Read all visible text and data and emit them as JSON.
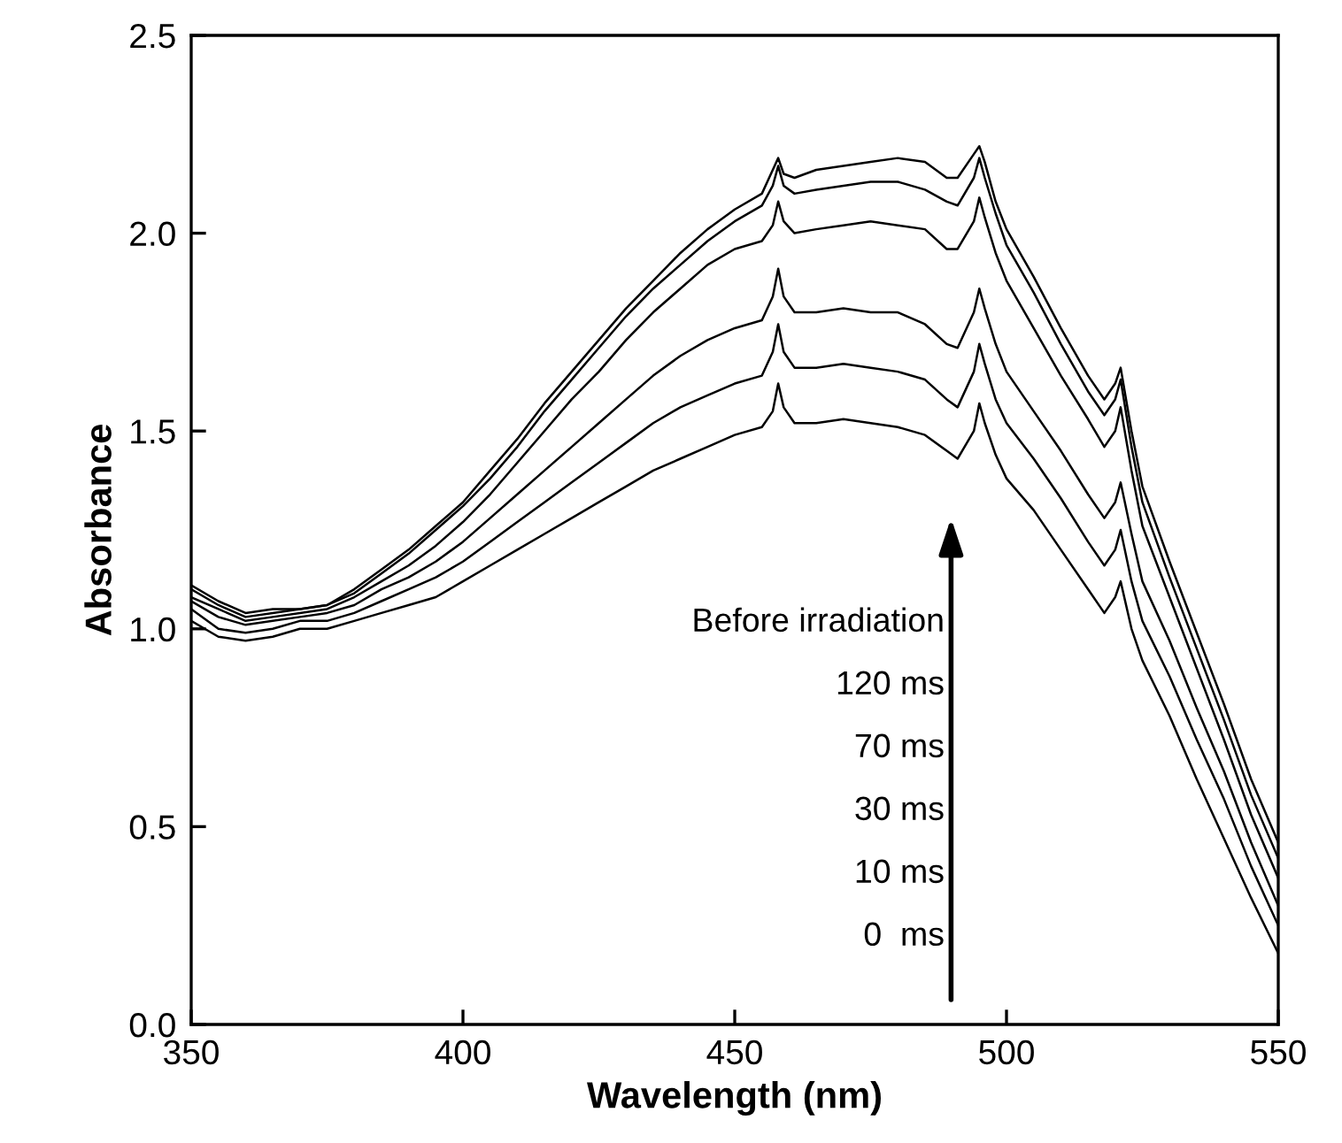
{
  "chart_data": {
    "type": "line",
    "xlabel": "Wavelength (nm)",
    "ylabel": "Absorbance",
    "xlim": [
      350,
      550
    ],
    "ylim": [
      0,
      2.5
    ],
    "xticks": [
      350,
      400,
      450,
      500,
      550
    ],
    "yticks": [
      {
        "value": 0,
        "label": "0.0"
      },
      {
        "value": 0.5,
        "label": "0.5"
      },
      {
        "value": 1,
        "label": "1.0"
      },
      {
        "value": 1.5,
        "label": "1.5"
      },
      {
        "value": 2,
        "label": "2.0"
      },
      {
        "value": 2.5,
        "label": "2.5"
      }
    ],
    "grid": false,
    "legend": false,
    "marker": "none",
    "line_style": "solid",
    "x": [
      350,
      355,
      360,
      365,
      370,
      375,
      380,
      385,
      390,
      395,
      400,
      405,
      410,
      415,
      420,
      425,
      430,
      435,
      440,
      445,
      450,
      455,
      457,
      458,
      459,
      461,
      465,
      470,
      475,
      480,
      485,
      489,
      491,
      494,
      495,
      496,
      498,
      500,
      505,
      510,
      515,
      518,
      520,
      521,
      523,
      525,
      530,
      535,
      540,
      545,
      550
    ],
    "series": [
      {
        "color": "#000000",
        "values": [
          1.02,
          0.98,
          0.97,
          0.98,
          1.0,
          1.0,
          1.02,
          1.04,
          1.06,
          1.08,
          1.12,
          1.16,
          1.2,
          1.24,
          1.28,
          1.32,
          1.36,
          1.4,
          1.43,
          1.46,
          1.49,
          1.51,
          1.55,
          1.62,
          1.56,
          1.52,
          1.52,
          1.53,
          1.52,
          1.51,
          1.49,
          1.45,
          1.43,
          1.5,
          1.57,
          1.52,
          1.44,
          1.38,
          1.3,
          1.2,
          1.1,
          1.04,
          1.08,
          1.12,
          1.0,
          0.92,
          0.78,
          0.62,
          0.47,
          0.32,
          0.18
        ]
      },
      {
        "color": "#000000",
        "values": [
          1.05,
          1.0,
          0.99,
          1.0,
          1.02,
          1.02,
          1.04,
          1.07,
          1.1,
          1.13,
          1.17,
          1.22,
          1.27,
          1.32,
          1.37,
          1.42,
          1.47,
          1.52,
          1.56,
          1.59,
          1.62,
          1.64,
          1.7,
          1.77,
          1.7,
          1.66,
          1.66,
          1.67,
          1.66,
          1.65,
          1.63,
          1.58,
          1.56,
          1.65,
          1.72,
          1.67,
          1.58,
          1.52,
          1.43,
          1.33,
          1.22,
          1.16,
          1.2,
          1.25,
          1.12,
          1.02,
          0.88,
          0.72,
          0.57,
          0.4,
          0.25
        ]
      },
      {
        "color": "#000000",
        "values": [
          1.07,
          1.03,
          1.01,
          1.02,
          1.03,
          1.04,
          1.06,
          1.1,
          1.13,
          1.17,
          1.22,
          1.28,
          1.34,
          1.4,
          1.46,
          1.52,
          1.58,
          1.64,
          1.69,
          1.73,
          1.76,
          1.78,
          1.84,
          1.91,
          1.84,
          1.8,
          1.8,
          1.81,
          1.8,
          1.8,
          1.77,
          1.72,
          1.71,
          1.8,
          1.86,
          1.81,
          1.72,
          1.65,
          1.55,
          1.45,
          1.34,
          1.28,
          1.32,
          1.37,
          1.24,
          1.12,
          0.97,
          0.8,
          0.64,
          0.46,
          0.3
        ]
      },
      {
        "color": "#000000",
        "values": [
          1.08,
          1.05,
          1.02,
          1.03,
          1.04,
          1.05,
          1.08,
          1.12,
          1.16,
          1.21,
          1.27,
          1.34,
          1.42,
          1.5,
          1.58,
          1.65,
          1.73,
          1.8,
          1.86,
          1.92,
          1.96,
          1.98,
          2.02,
          2.08,
          2.03,
          2.0,
          2.01,
          2.02,
          2.03,
          2.02,
          2.01,
          1.96,
          1.96,
          2.03,
          2.09,
          2.04,
          1.95,
          1.88,
          1.76,
          1.64,
          1.53,
          1.46,
          1.5,
          1.56,
          1.4,
          1.26,
          1.08,
          0.9,
          0.72,
          0.53,
          0.37
        ]
      },
      {
        "color": "#000000",
        "values": [
          1.1,
          1.06,
          1.03,
          1.04,
          1.05,
          1.06,
          1.09,
          1.14,
          1.19,
          1.25,
          1.31,
          1.38,
          1.46,
          1.55,
          1.63,
          1.71,
          1.79,
          1.86,
          1.92,
          1.98,
          2.03,
          2.07,
          2.12,
          2.17,
          2.12,
          2.1,
          2.11,
          2.12,
          2.13,
          2.13,
          2.11,
          2.08,
          2.07,
          2.14,
          2.19,
          2.14,
          2.05,
          1.97,
          1.85,
          1.72,
          1.6,
          1.54,
          1.58,
          1.63,
          1.46,
          1.32,
          1.13,
          0.95,
          0.77,
          0.58,
          0.42
        ]
      },
      {
        "color": "#000000",
        "values": [
          1.11,
          1.07,
          1.04,
          1.05,
          1.05,
          1.06,
          1.1,
          1.15,
          1.2,
          1.26,
          1.32,
          1.4,
          1.48,
          1.57,
          1.65,
          1.73,
          1.81,
          1.88,
          1.95,
          2.01,
          2.06,
          2.1,
          2.16,
          2.19,
          2.15,
          2.14,
          2.16,
          2.17,
          2.18,
          2.19,
          2.18,
          2.14,
          2.14,
          2.2,
          2.22,
          2.18,
          2.08,
          2.01,
          1.89,
          1.76,
          1.64,
          1.58,
          1.62,
          1.66,
          1.5,
          1.36,
          1.17,
          0.99,
          0.81,
          0.62,
          0.46
        ]
      }
    ],
    "annotations": [
      "Before irradiation",
      "120 ms",
      "70 ms",
      "30 ms",
      "10 ms",
      "0  ms"
    ]
  }
}
